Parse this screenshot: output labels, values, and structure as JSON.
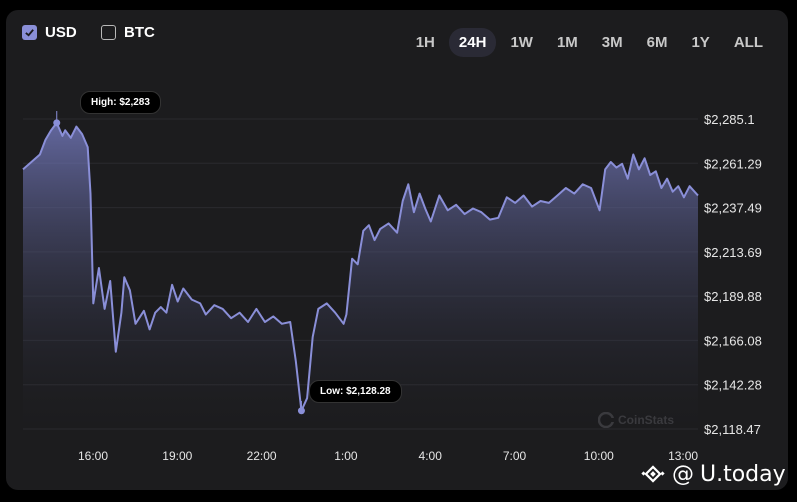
{
  "currency_toggle": {
    "usd": {
      "label": "USD",
      "checked": true
    },
    "btc": {
      "label": "BTC",
      "checked": false
    }
  },
  "time_ranges": [
    "1H",
    "24H",
    "1W",
    "1M",
    "3M",
    "6M",
    "1Y",
    "ALL"
  ],
  "active_range": "24H",
  "callouts": {
    "high": "High: $2,283",
    "low": "Low: $2,128.28"
  },
  "watermark": "CoinStats",
  "brand": {
    "at_symbol": "@",
    "name": "U.today"
  },
  "colors": {
    "line": "#8a8fd8",
    "panel": "#1c1c1e",
    "accent": "#8a8fd8"
  },
  "chart_data": {
    "type": "area",
    "y_ticks": [
      "$2,285.1",
      "$2,261.29",
      "$2,237.49",
      "$2,213.69",
      "$2,189.88",
      "$2,166.08",
      "$2,142.28",
      "$2,118.47"
    ],
    "x_ticks": [
      "16:00",
      "19:00",
      "22:00",
      "1:00",
      "4:00",
      "7:00",
      "10:00",
      "13:00"
    ],
    "ylim": [
      2118.47,
      2285.1
    ],
    "x_range_hours": [
      14.5,
      38.5
    ],
    "grid": true,
    "high": {
      "x": 15.7,
      "y": 2283
    },
    "low": {
      "x": 24.4,
      "y": 2128.28
    },
    "series": [
      {
        "x": [
          14.5,
          14.8,
          15.1,
          15.3,
          15.5,
          15.7,
          15.9,
          16.0,
          16.2,
          16.4,
          16.6,
          16.8,
          16.9,
          17.0,
          17.2,
          17.4,
          17.6,
          17.8,
          18.0,
          18.1,
          18.3,
          18.5,
          18.8,
          19.0,
          19.2,
          19.4,
          19.6,
          19.8,
          20.0,
          20.2,
          20.5,
          20.8,
          21.0,
          21.3,
          21.6,
          21.9,
          22.2,
          22.5,
          22.8,
          23.1,
          23.4,
          23.7,
          24.0,
          24.2,
          24.4,
          24.6,
          24.8,
          25.0,
          25.3,
          25.6,
          25.9,
          26.0,
          26.2,
          26.4,
          26.6,
          26.8,
          27.0,
          27.2,
          27.5,
          27.8,
          28.0,
          28.2,
          28.4,
          28.6,
          28.8,
          29.0,
          29.3,
          29.6,
          29.9,
          30.2,
          30.5,
          30.8,
          31.1,
          31.4,
          31.7,
          32.0,
          32.3,
          32.6,
          32.9,
          33.2,
          33.5,
          33.8,
          34.1,
          34.4,
          34.7,
          35.0,
          35.2,
          35.4,
          35.6,
          35.8,
          36.0,
          36.2,
          36.4,
          36.6,
          36.8,
          37.0,
          37.2,
          37.4,
          37.6,
          37.8,
          38.0,
          38.2,
          38.5
        ],
        "values": [
          2258,
          2262,
          2266,
          2274,
          2279,
          2283,
          2276,
          2279,
          2275,
          2281,
          2277,
          2270,
          2245,
          2186,
          2205,
          2183,
          2198,
          2160,
          2181,
          2200,
          2193,
          2175,
          2182,
          2172,
          2181,
          2184,
          2181,
          2196,
          2187,
          2194,
          2188,
          2186,
          2180,
          2185,
          2183,
          2178,
          2181,
          2176,
          2183,
          2176,
          2179,
          2175,
          2176,
          2155,
          2128.3,
          2135,
          2168,
          2183,
          2186,
          2181,
          2175,
          2180,
          2210,
          2207,
          2225,
          2228,
          2220,
          2226,
          2229,
          2224,
          2241,
          2250,
          2235,
          2245,
          2237,
          2230,
          2244,
          2236,
          2239,
          2234,
          2237,
          2235,
          2231,
          2232,
          2243,
          2240,
          2244,
          2238,
          2241,
          2240,
          2244,
          2248,
          2245,
          2250,
          2248,
          2236,
          2258,
          2262,
          2259,
          2261,
          2253,
          2266,
          2258,
          2264,
          2255,
          2257,
          2248,
          2253,
          2246,
          2249,
          2243,
          2249,
          2244
        ]
      }
    ]
  }
}
